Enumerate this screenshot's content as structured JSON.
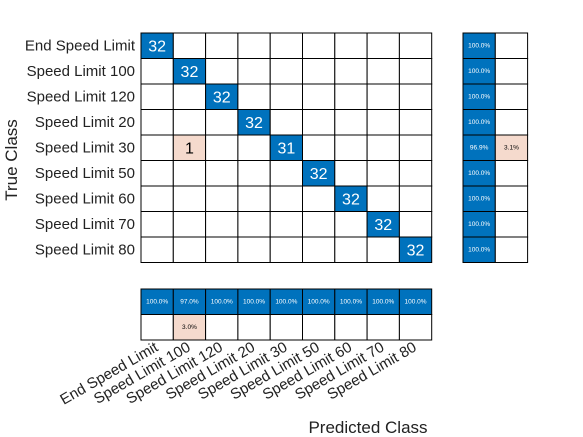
{
  "chart_data": {
    "type": "heatmap",
    "title": "",
    "xlabel": "Predicted Class",
    "ylabel": "True Class",
    "classes": [
      "End Speed Limit",
      "Speed Limit 100",
      "Speed Limit 120",
      "Speed Limit 20",
      "Speed Limit 30",
      "Speed Limit 50",
      "Speed Limit 60",
      "Speed Limit 70",
      "Speed Limit 80"
    ],
    "matrix": [
      [
        32,
        0,
        0,
        0,
        0,
        0,
        0,
        0,
        0
      ],
      [
        0,
        32,
        0,
        0,
        0,
        0,
        0,
        0,
        0
      ],
      [
        0,
        0,
        32,
        0,
        0,
        0,
        0,
        0,
        0
      ],
      [
        0,
        0,
        0,
        32,
        0,
        0,
        0,
        0,
        0
      ],
      [
        0,
        1,
        0,
        0,
        31,
        0,
        0,
        0,
        0
      ],
      [
        0,
        0,
        0,
        0,
        0,
        32,
        0,
        0,
        0
      ],
      [
        0,
        0,
        0,
        0,
        0,
        0,
        32,
        0,
        0
      ],
      [
        0,
        0,
        0,
        0,
        0,
        0,
        0,
        32,
        0
      ],
      [
        0,
        0,
        0,
        0,
        0,
        0,
        0,
        0,
        32
      ]
    ],
    "row_summary": [
      [
        "100.0%",
        ""
      ],
      [
        "100.0%",
        ""
      ],
      [
        "100.0%",
        ""
      ],
      [
        "100.0%",
        ""
      ],
      [
        "96.9%",
        "3.1%"
      ],
      [
        "100.0%",
        ""
      ],
      [
        "100.0%",
        ""
      ],
      [
        "100.0%",
        ""
      ],
      [
        "100.0%",
        ""
      ]
    ],
    "column_summary": [
      [
        "100.0%",
        "97.0%",
        "100.0%",
        "100.0%",
        "100.0%",
        "100.0%",
        "100.0%",
        "100.0%",
        "100.0%"
      ],
      [
        "",
        "3.0%",
        "",
        "",
        "",
        "",
        "",
        "",
        ""
      ]
    ],
    "colors": {
      "correct": "#0072bd",
      "incorrect": "#f5dacd",
      "empty": "#ffffff",
      "correct_text": "#ffffff",
      "incorrect_text": "#000000"
    }
  }
}
